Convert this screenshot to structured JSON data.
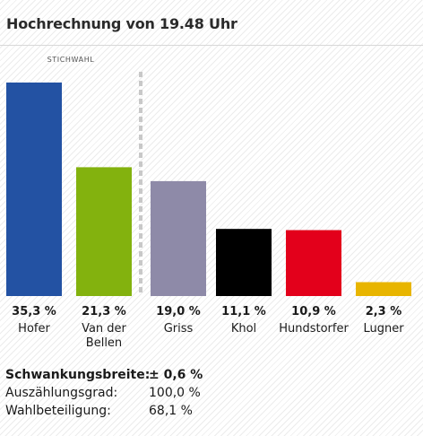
{
  "title": "Hochrechnung von 19.48 Uhr",
  "chart_data": {
    "type": "bar",
    "categories": [
      "Hofer",
      "Van der Bellen",
      "Griss",
      "Khol",
      "Hundstorfer",
      "Lugner"
    ],
    "category_lines": [
      [
        "Hofer"
      ],
      [
        "Van der",
        "Bellen"
      ],
      [
        "Griss"
      ],
      [
        "Khol"
      ],
      [
        "Hundstorfer"
      ],
      [
        "Lugner"
      ]
    ],
    "values": [
      35.3,
      21.3,
      19.0,
      11.1,
      10.9,
      2.3
    ],
    "value_labels": [
      "35,3 %",
      "21,3 %",
      "19,0 %",
      "11,1 %",
      "10,9 %",
      "2,3 %"
    ],
    "colors": [
      "#2352a3",
      "#83b20e",
      "#8e8aa8",
      "#000000",
      "#e3001b",
      "#e8b500"
    ],
    "ylim": [
      0,
      35.3
    ],
    "grid": false,
    "annotation": "STICHWAHL",
    "runoff_after_index": 1
  },
  "footer": [
    {
      "label": "Schwankungsbreite:",
      "value": "± 0,6 %",
      "bold": true
    },
    {
      "label": "Auszählungsgrad:",
      "value": "100,0 %",
      "bold": false
    },
    {
      "label": "Wahlbeteiligung:",
      "value": "68,1 %",
      "bold": false
    }
  ]
}
